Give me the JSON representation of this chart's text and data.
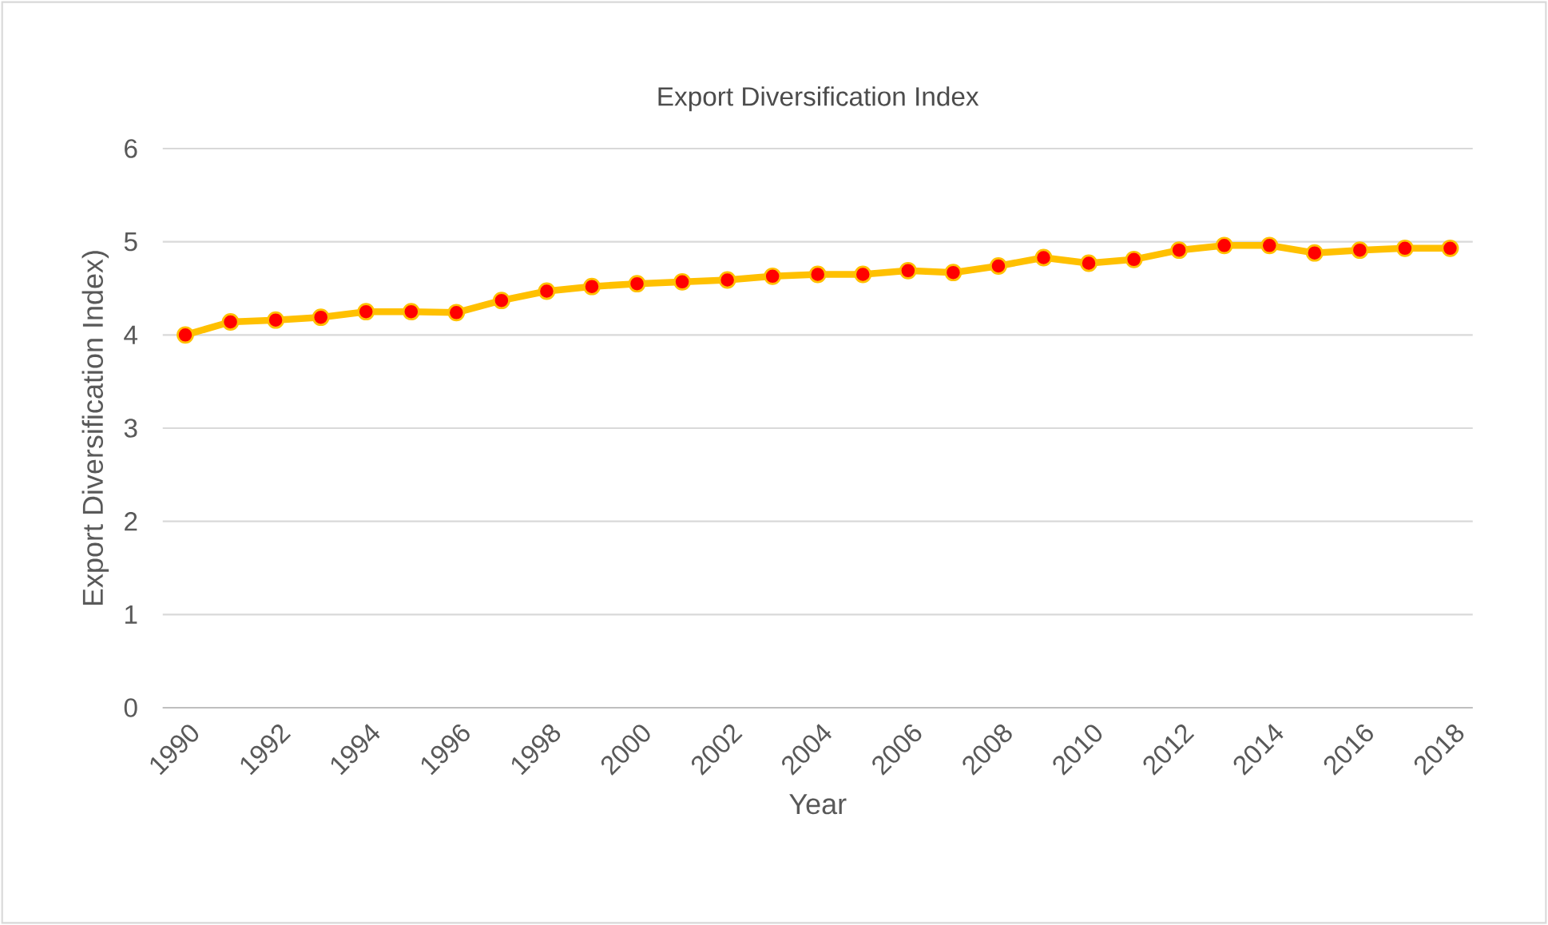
{
  "chart_data": {
    "type": "line",
    "title": "Export Diversification Index",
    "xlabel": "Year",
    "ylabel": "Export Diversification Index)",
    "categories": [
      "1990",
      null,
      "1992",
      null,
      "1994",
      null,
      "1996",
      null,
      "1998",
      null,
      "2000",
      null,
      "2002",
      null,
      "2004",
      null,
      "2006",
      null,
      "2008",
      null,
      "2010",
      null,
      "2012",
      null,
      "2014",
      null,
      "2016",
      null,
      "2018"
    ],
    "series": [
      {
        "color": "#ffc000",
        "values": [
          4.0,
          4.14,
          4.16,
          4.19,
          4.25,
          4.25,
          4.24,
          4.37,
          4.47,
          4.52,
          4.55,
          4.57,
          4.59,
          4.63,
          4.65,
          4.65,
          4.69,
          4.67,
          4.74,
          4.83,
          4.77,
          4.81,
          4.91,
          4.96,
          4.96,
          4.88,
          4.91,
          4.93,
          4.93
        ]
      }
    ],
    "ylim": [
      0,
      6
    ],
    "yticks": [
      0,
      1,
      2,
      3,
      4,
      5,
      6
    ],
    "grid": "y",
    "marker": "circle",
    "line_style": "solid"
  }
}
